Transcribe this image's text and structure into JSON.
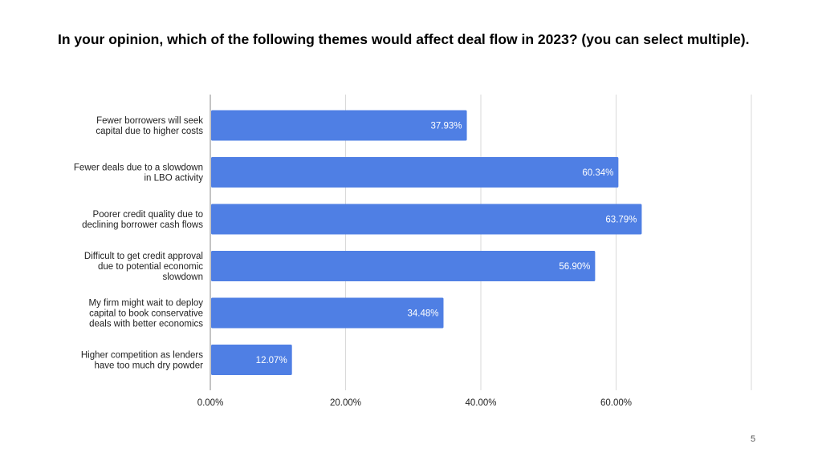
{
  "slide": {
    "title": "In your opinion, which of the following themes would affect deal flow in 2023? (you can select multiple).",
    "page_number": "5"
  },
  "colors": {
    "bar": "#4F7FE4",
    "gridline": "#d9d9d9",
    "text": "#222222",
    "data_label": "#ffffff"
  },
  "chart_data": {
    "type": "bar",
    "orientation": "horizontal",
    "title": "",
    "xlabel": "",
    "ylabel": "",
    "categories": [
      [
        "Fewer borrowers will seek",
        "capital due to higher costs"
      ],
      [
        "Fewer deals due to a slowdown",
        "in LBO activity"
      ],
      [
        "Poorer credit quality due to",
        "declining borrower cash flows"
      ],
      [
        "Difficult to get credit approval",
        "due to potential economic",
        "slowdown"
      ],
      [
        "My firm might wait to deploy",
        "capital to book conservative",
        "deals with better economics"
      ],
      [
        "Higher competition as lenders",
        "have too much dry powder"
      ]
    ],
    "values": [
      37.93,
      60.34,
      63.79,
      56.9,
      34.48,
      12.07
    ],
    "data_labels": [
      "37.93%",
      "60.34%",
      "63.79%",
      "56.90%",
      "34.48%",
      "12.07%"
    ],
    "xlim": [
      0,
      80
    ],
    "x_ticks": [
      0,
      20,
      40,
      60,
      80
    ],
    "x_tick_labels": [
      "0.00%",
      "20.00%",
      "40.00%",
      "60.00%",
      ""
    ],
    "grid": true,
    "legend": "none"
  }
}
